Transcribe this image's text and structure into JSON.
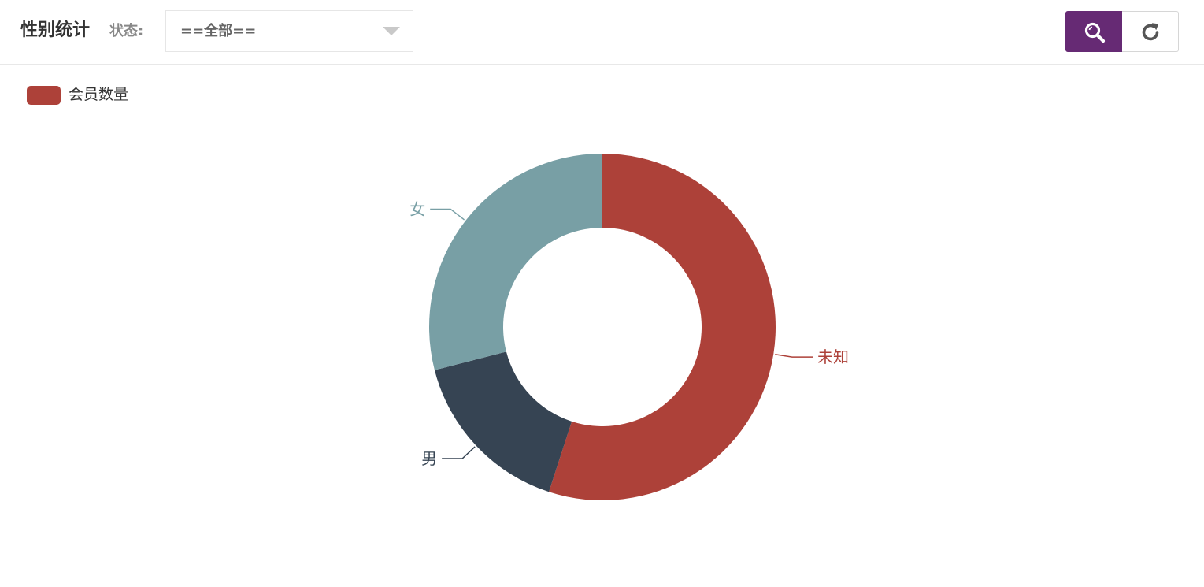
{
  "toolbar": {
    "title": "性别统计",
    "status_label": "状态:",
    "status_value": "==全部=="
  },
  "buttons": {
    "search_icon": "search-icon",
    "refresh_icon": "refresh-icon",
    "search_color": "#662a74"
  },
  "chart_data": {
    "type": "pie",
    "donut": true,
    "legend_placement": "top-left",
    "series": [
      {
        "name": "会员数量",
        "color": "#ad4139"
      }
    ],
    "slices": [
      {
        "label": "未知",
        "value": 55,
        "color": "#ad4139"
      },
      {
        "label": "男",
        "value": 16,
        "color": "#364453"
      },
      {
        "label": "女",
        "value": 29,
        "color": "#789fa5"
      }
    ]
  }
}
